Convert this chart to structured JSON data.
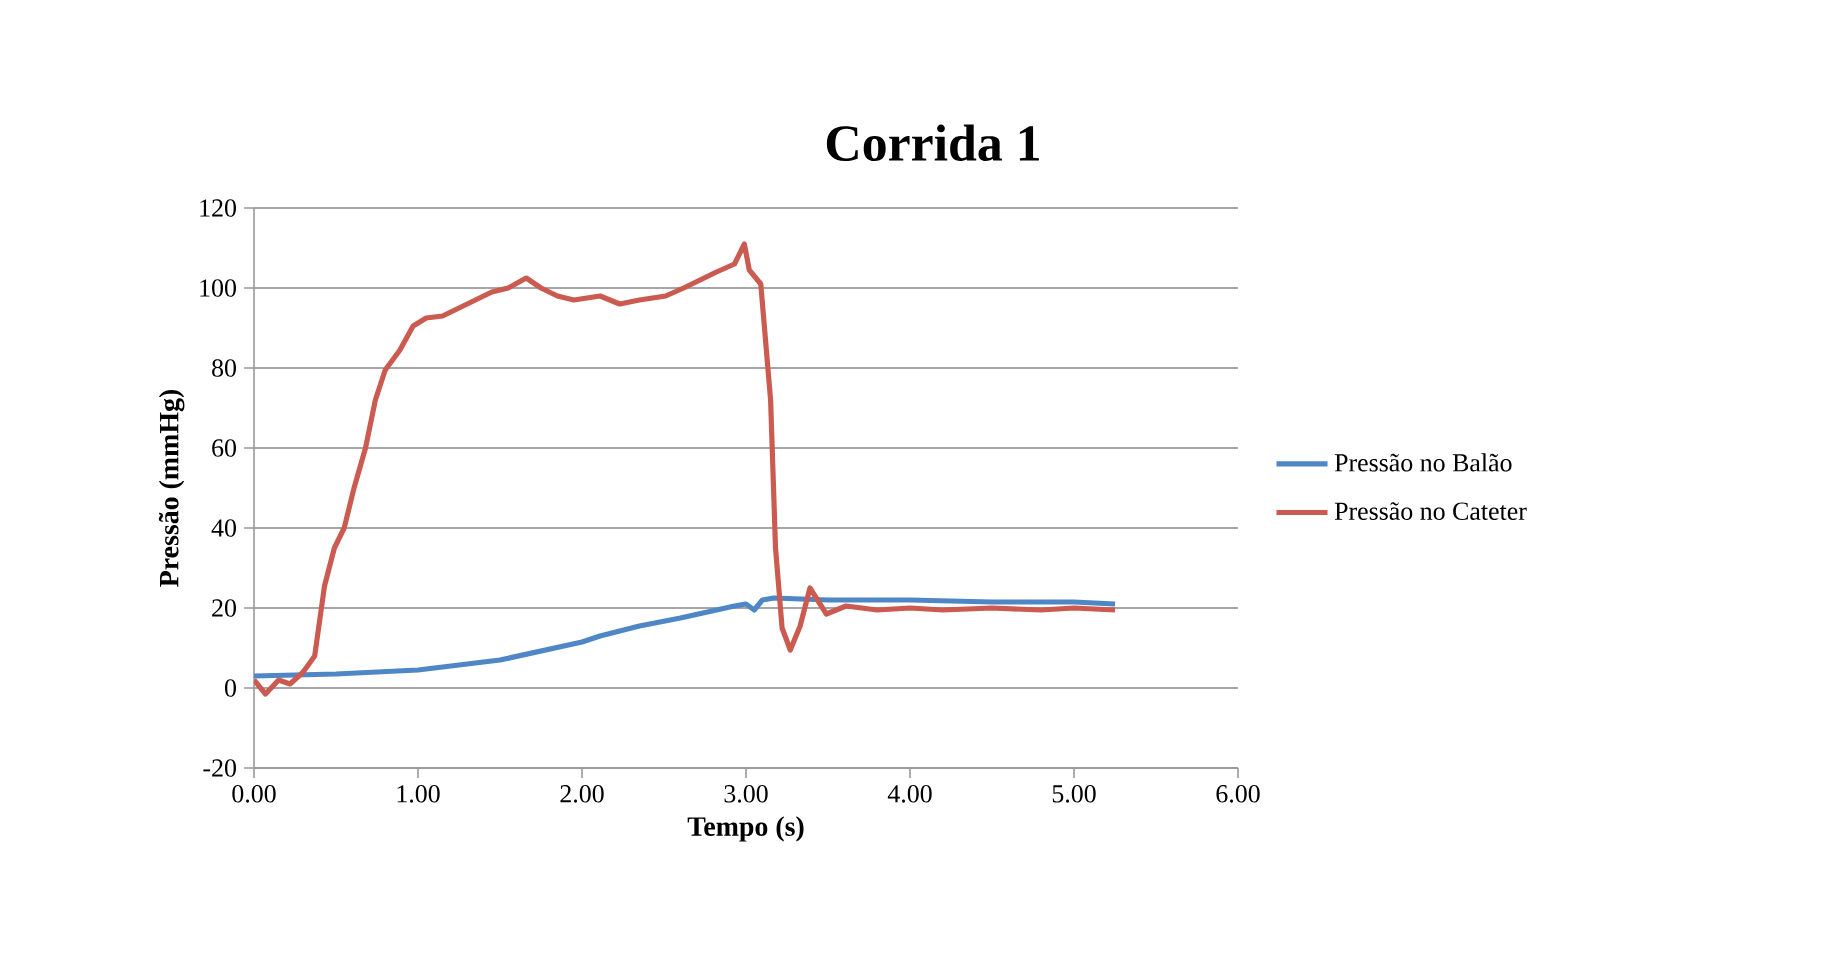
{
  "chart_data": {
    "type": "line",
    "title": "Corrida 1",
    "xlabel": "Tempo (s)",
    "ylabel": "Pressão (mmHg)",
    "xlim": [
      0,
      6
    ],
    "ylim": [
      -20,
      120
    ],
    "xticks": [
      {
        "value": 0,
        "label": "0.00"
      },
      {
        "value": 1,
        "label": "1.00"
      },
      {
        "value": 2,
        "label": "2.00"
      },
      {
        "value": 3,
        "label": "3.00"
      },
      {
        "value": 4,
        "label": "4.00"
      },
      {
        "value": 5,
        "label": "5.00"
      },
      {
        "value": 6,
        "label": "6.00"
      }
    ],
    "yticks": [
      -20,
      0,
      20,
      40,
      60,
      80,
      100,
      120
    ],
    "grid": "y",
    "legend": "right",
    "marker": "none",
    "line_style": "solid",
    "series": [
      {
        "name": "Pressão no Balão",
        "color": "#4f87c6",
        "x": [
          0,
          0.5,
          1.0,
          1.5,
          2.0,
          2.11,
          2.35,
          2.6,
          2.93,
          3.0,
          3.05,
          3.1,
          3.17,
          3.5,
          4.0,
          4.5,
          5.0,
          5.25
        ],
        "values": [
          3,
          3.5,
          4.5,
          7,
          11.5,
          13,
          15.5,
          17.5,
          20.5,
          21,
          19.5,
          22,
          22.5,
          22,
          22,
          21.5,
          21.5,
          21
        ]
      },
      {
        "name": "Pressão no Cateter",
        "color": "#cb5b50",
        "x": [
          0,
          0.07,
          0.15,
          0.22,
          0.3,
          0.37,
          0.43,
          0.49,
          0.55,
          0.61,
          0.68,
          0.74,
          0.8,
          0.89,
          0.97,
          1.05,
          1.15,
          1.25,
          1.35,
          1.45,
          1.55,
          1.66,
          1.75,
          1.85,
          1.95,
          2.11,
          2.23,
          2.35,
          2.51,
          2.62,
          2.72,
          2.82,
          2.93,
          2.99,
          3.02,
          3.09,
          3.15,
          3.18,
          3.22,
          3.27,
          3.33,
          3.39,
          3.49,
          3.61,
          3.8,
          4.0,
          4.2,
          4.5,
          4.8,
          5.0,
          5.25
        ],
        "values": [
          2,
          -1.5,
          2,
          1,
          4,
          8,
          25.5,
          35,
          40,
          50,
          60,
          72,
          79.5,
          84.5,
          90.5,
          92.5,
          93,
          95,
          97,
          99,
          100,
          102.5,
          100,
          98,
          97,
          98,
          96,
          97,
          98,
          100,
          102,
          104,
          106,
          111,
          104.5,
          101,
          72,
          35,
          15,
          9.5,
          15.5,
          25,
          18.5,
          20.5,
          19.5,
          20,
          19.5,
          20,
          19.5,
          20,
          19.5
        ]
      }
    ]
  }
}
